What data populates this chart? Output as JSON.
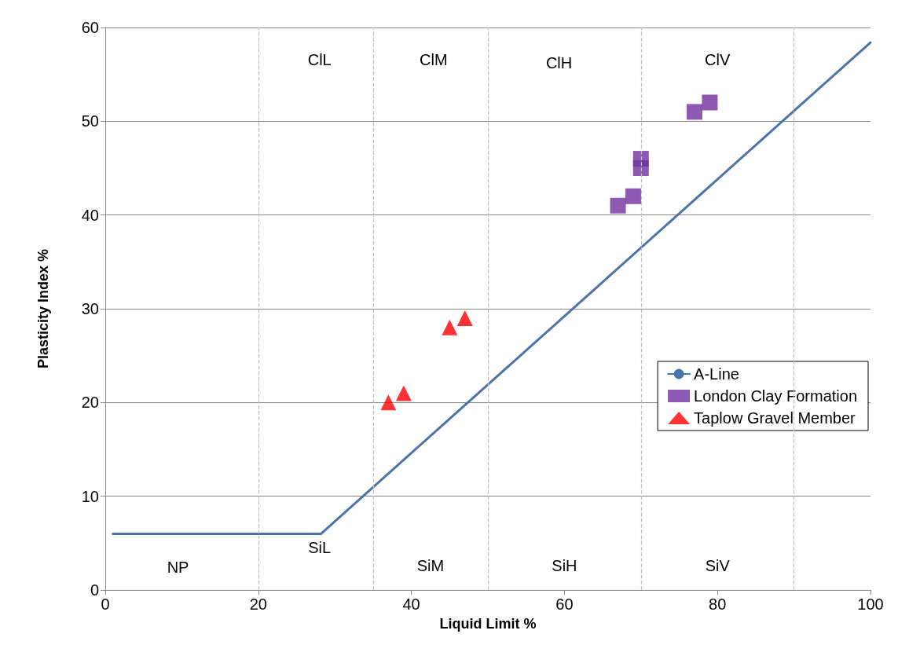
{
  "chart_data": {
    "type": "scatter",
    "xlabel": "Liquid Limit %",
    "ylabel": "Plasticity Index %",
    "xlim": [
      0,
      100
    ],
    "xticks": [
      0,
      20,
      40,
      60,
      80,
      100
    ],
    "ylim": [
      0,
      60
    ],
    "yticks": [
      0,
      10,
      20,
      30,
      40,
      50,
      60
    ],
    "grid": "y",
    "legend": "right",
    "series": [
      {
        "name": "A-Line",
        "type": "line",
        "color": "#4a74aa",
        "marker": "none",
        "line_style": "solid",
        "x": [
          1,
          28.2,
          100
        ],
        "values": [
          6,
          6,
          58.4
        ]
      },
      {
        "name": "London Clay Formation",
        "color": "#7030a0",
        "marker": "square",
        "x": [
          67,
          69,
          70,
          70,
          77,
          79
        ],
        "values": [
          41,
          42,
          45,
          46,
          51,
          52
        ]
      },
      {
        "name": "Taplow Gravel Member",
        "color": "#ff0000",
        "marker": "triangle",
        "x": [
          37,
          39,
          45,
          47
        ],
        "values": [
          20,
          21,
          28,
          29
        ]
      }
    ],
    "ref_lines": [
      {
        "axis": "x",
        "value": 20,
        "color": "#c0c0c0",
        "line_style": "dashed"
      },
      {
        "axis": "x",
        "value": 35,
        "color": "#c0c0c0",
        "line_style": "dashed"
      },
      {
        "axis": "x",
        "value": 50,
        "color": "#c0c0c0",
        "line_style": "dashed"
      },
      {
        "axis": "x",
        "value": 70,
        "color": "#c0c0c0",
        "line_style": "dashed"
      },
      {
        "axis": "x",
        "value": 90,
        "color": "#c0c0c0",
        "line_style": "dashed"
      }
    ],
    "annotations": [
      "ClL",
      "ClM",
      "ClH",
      "ClV",
      "NP",
      "SiL",
      "SiM",
      "SiH",
      "SiV"
    ]
  }
}
